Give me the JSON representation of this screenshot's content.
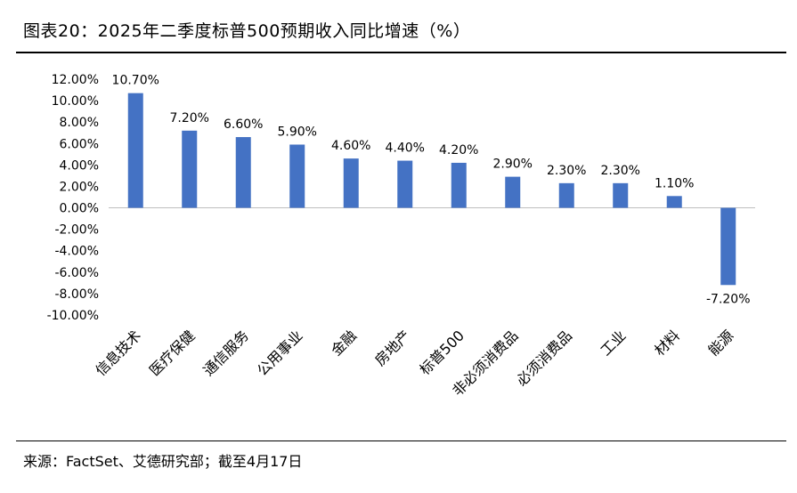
{
  "title": "图表20：2025年二季度标普500预期收入同比增速（%）",
  "source": "来源：FactSet、艾德研究部；截至4月17日",
  "colors": {
    "bar": "#4472c4",
    "axis": "#bfbfbf",
    "text": "#000000"
  },
  "chart_data": {
    "type": "bar",
    "title": "",
    "xlabel": "",
    "ylabel": "",
    "categories": [
      "信息技术",
      "医疗保健",
      "通信服务",
      "公用事业",
      "金融",
      "房地产",
      "标普500",
      "非必须消费品",
      "必须消费品",
      "工业",
      "材料",
      "能源"
    ],
    "values": [
      10.7,
      7.2,
      6.6,
      5.9,
      4.6,
      4.4,
      4.2,
      2.9,
      2.3,
      2.3,
      1.1,
      -7.2
    ],
    "data_labels": [
      "10.70%",
      "7.20%",
      "6.60%",
      "5.90%",
      "4.60%",
      "4.40%",
      "4.20%",
      "2.90%",
      "2.30%",
      "2.30%",
      "1.10%",
      "-7.20%"
    ],
    "ylim": [
      -10,
      12
    ],
    "yticks": [
      12,
      10,
      8,
      6,
      4,
      2,
      0,
      -2,
      -4,
      -6,
      -8,
      -10
    ],
    "ytick_labels": [
      "12.00%",
      "10.00%",
      "8.00%",
      "6.00%",
      "4.00%",
      "2.00%",
      "0.00%",
      "-2.00%",
      "-4.00%",
      "-6.00%",
      "-8.00%",
      "-10.00%"
    ],
    "grid": false,
    "legend": "none"
  }
}
